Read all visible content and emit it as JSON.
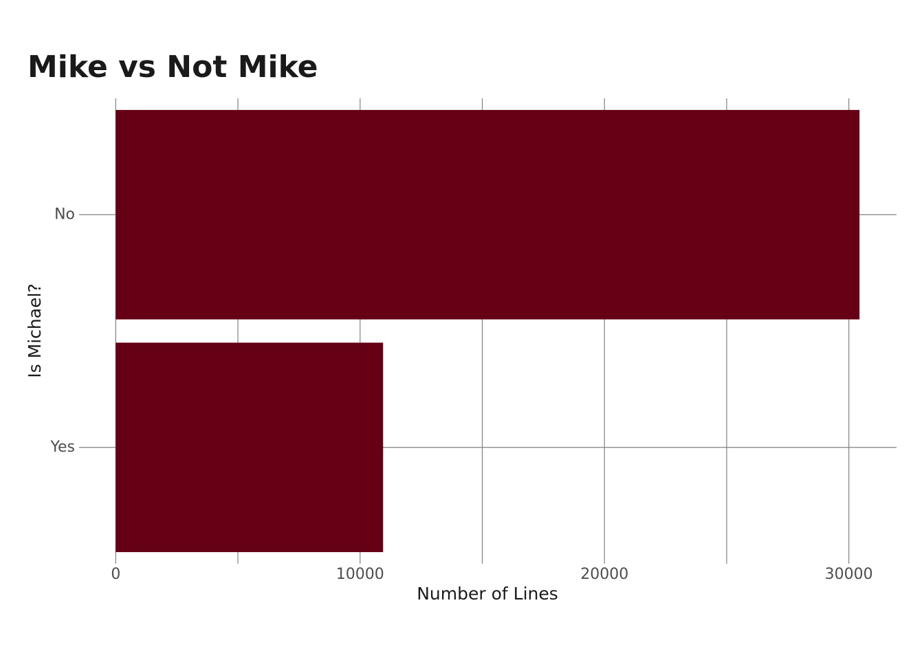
{
  "chart_data": {
    "type": "barh",
    "title": "Mike vs Not Mike",
    "x_label": "Number of Lines",
    "y_label": "Is Michael?",
    "categories": [
      "No",
      "Yes"
    ],
    "values": [
      30436,
      10942
    ],
    "color": "#650015",
    "xlim": [
      -1500,
      31950
    ],
    "xticks": [
      0,
      10000,
      20000,
      30000
    ],
    "minor_xticks": [
      5000,
      15000,
      25000
    ],
    "grid": true
  }
}
